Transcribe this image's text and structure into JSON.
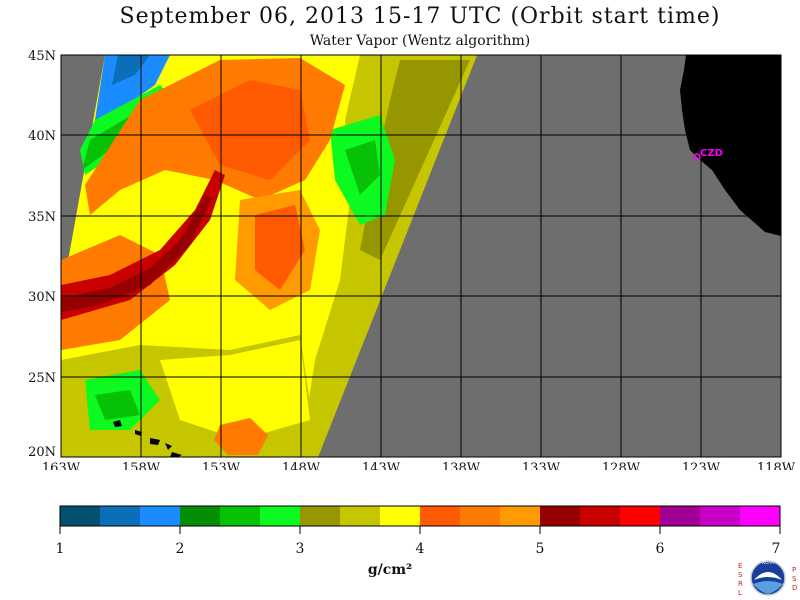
{
  "title": "September 06, 2013   15-17 UTC  (Orbit start time)",
  "subtitle": "Water Vapor (Wentz algorithm)",
  "map": {
    "lat_labels": [
      "45N",
      "40N",
      "35N",
      "30N",
      "25N",
      "20N"
    ],
    "lon_labels": [
      "163W",
      "158W",
      "153W",
      "148W",
      "143W",
      "138W",
      "133W",
      "128W",
      "123W",
      "118W"
    ],
    "station_label": "CZD",
    "colors": {
      "no_data": "#6e6e6e",
      "land": "#000000",
      "station": "#ff00ff",
      "grid": "#000000"
    }
  },
  "colorbar": {
    "units": "g/cm²",
    "tick_labels": [
      "1",
      "2",
      "3",
      "4",
      "5",
      "6",
      "7"
    ],
    "colors": [
      "#04506f",
      "#0a6fb8",
      "#1b8cff",
      "#058d05",
      "#07c107",
      "#0cfa20",
      "#969600",
      "#c6c600",
      "#ffff00",
      "#ff5a00",
      "#ff7a00",
      "#ff9b00",
      "#960000",
      "#c80000",
      "#ff0000",
      "#a00096",
      "#c800c8",
      "#ff00ff"
    ]
  },
  "logo": {
    "text": "NOAA",
    "left_letters": [
      "E",
      "S",
      "R",
      "L"
    ],
    "right_letters": [
      "P",
      "S",
      "D"
    ]
  }
}
